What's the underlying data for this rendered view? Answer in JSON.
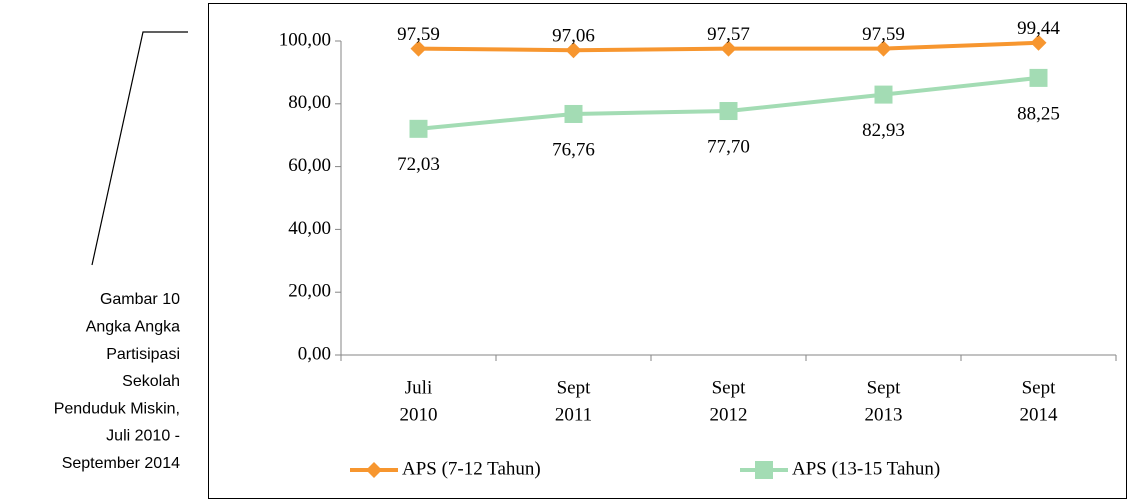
{
  "caption": [
    "Gambar 10",
    "Angka Angka",
    "Partisipasi",
    "Sekolah",
    "Penduduk Miskin,",
    "Juli 2010 -",
    "September 2014"
  ],
  "chart_data": {
    "type": "line",
    "categories": [
      [
        "Juli",
        "2010"
      ],
      [
        "Sept",
        "2011"
      ],
      [
        "Sept",
        "2012"
      ],
      [
        "Sept",
        "2013"
      ],
      [
        "Sept",
        "2014"
      ]
    ],
    "series": [
      {
        "name": "APS (7-12 Tahun)",
        "color": "#f7962f",
        "values": [
          97.59,
          97.06,
          97.57,
          97.59,
          99.44
        ],
        "value_labels": [
          "97,59",
          "97,06",
          "97,57",
          "97,59",
          "99,44"
        ]
      },
      {
        "name": "APS (13-15 Tahun)",
        "color": "#a3dcb4",
        "values": [
          72.03,
          76.76,
          77.7,
          82.93,
          88.25
        ],
        "value_labels": [
          "72,03",
          "76,76",
          "77,70",
          "82,93",
          "88,25"
        ]
      }
    ],
    "ylim": [
      0,
      100
    ],
    "yticks": [
      {
        "value": 0,
        "label": "0,00"
      },
      {
        "value": 20,
        "label": "20,00"
      },
      {
        "value": 40,
        "label": "40,00"
      },
      {
        "value": 60,
        "label": "60,00"
      },
      {
        "value": 80,
        "label": "80,00"
      },
      {
        "value": 100,
        "label": "100,00"
      }
    ],
    "legend": "bottom"
  }
}
